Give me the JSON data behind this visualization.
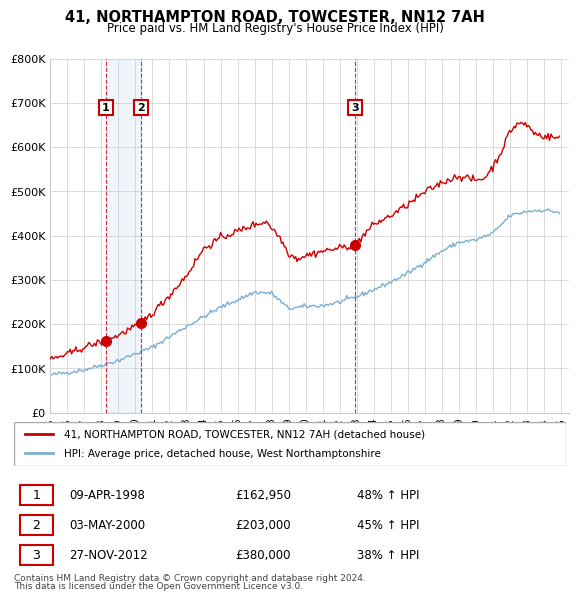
{
  "title": "41, NORTHAMPTON ROAD, TOWCESTER, NN12 7AH",
  "subtitle": "Price paid vs. HM Land Registry's House Price Index (HPI)",
  "legend_line1": "41, NORTHAMPTON ROAD, TOWCESTER, NN12 7AH (detached house)",
  "legend_line2": "HPI: Average price, detached house, West Northamptonshire",
  "footer1": "Contains HM Land Registry data © Crown copyright and database right 2024.",
  "footer2": "This data is licensed under the Open Government Licence v3.0.",
  "transactions": [
    {
      "num": 1,
      "date": "09-APR-1998",
      "price": "£162,950",
      "pct": "48% ↑ HPI",
      "year": 1998.27,
      "value": 162950
    },
    {
      "num": 2,
      "date": "03-MAY-2000",
      "price": "£203,000",
      "pct": "45% ↑ HPI",
      "year": 2000.33,
      "value": 203000
    },
    {
      "num": 3,
      "date": "27-NOV-2012",
      "price": "£380,000",
      "pct": "38% ↑ HPI",
      "year": 2012.9,
      "value": 380000
    }
  ],
  "red_color": "#cc0000",
  "blue_color": "#7bafd4",
  "shade_color": "#ddeeff",
  "vline_color": "#cc0000",
  "grid_color": "#cccccc",
  "background_color": "#ffffff",
  "ylim": [
    0,
    800000
  ],
  "xlim_start": 1995.0,
  "xlim_end": 2025.5,
  "xtick_years": [
    1995,
    1996,
    1997,
    1998,
    1999,
    2000,
    2001,
    2002,
    2003,
    2004,
    2005,
    2006,
    2007,
    2008,
    2009,
    2010,
    2011,
    2012,
    2013,
    2014,
    2015,
    2016,
    2017,
    2018,
    2019,
    2020,
    2021,
    2022,
    2023,
    2024,
    2025
  ],
  "yticks": [
    0,
    100000,
    200000,
    300000,
    400000,
    500000,
    600000,
    700000,
    800000
  ],
  "ytick_labels": [
    "£0",
    "£100K",
    "£200K",
    "£300K",
    "£400K",
    "£500K",
    "£600K",
    "£700K",
    "£800K"
  ]
}
